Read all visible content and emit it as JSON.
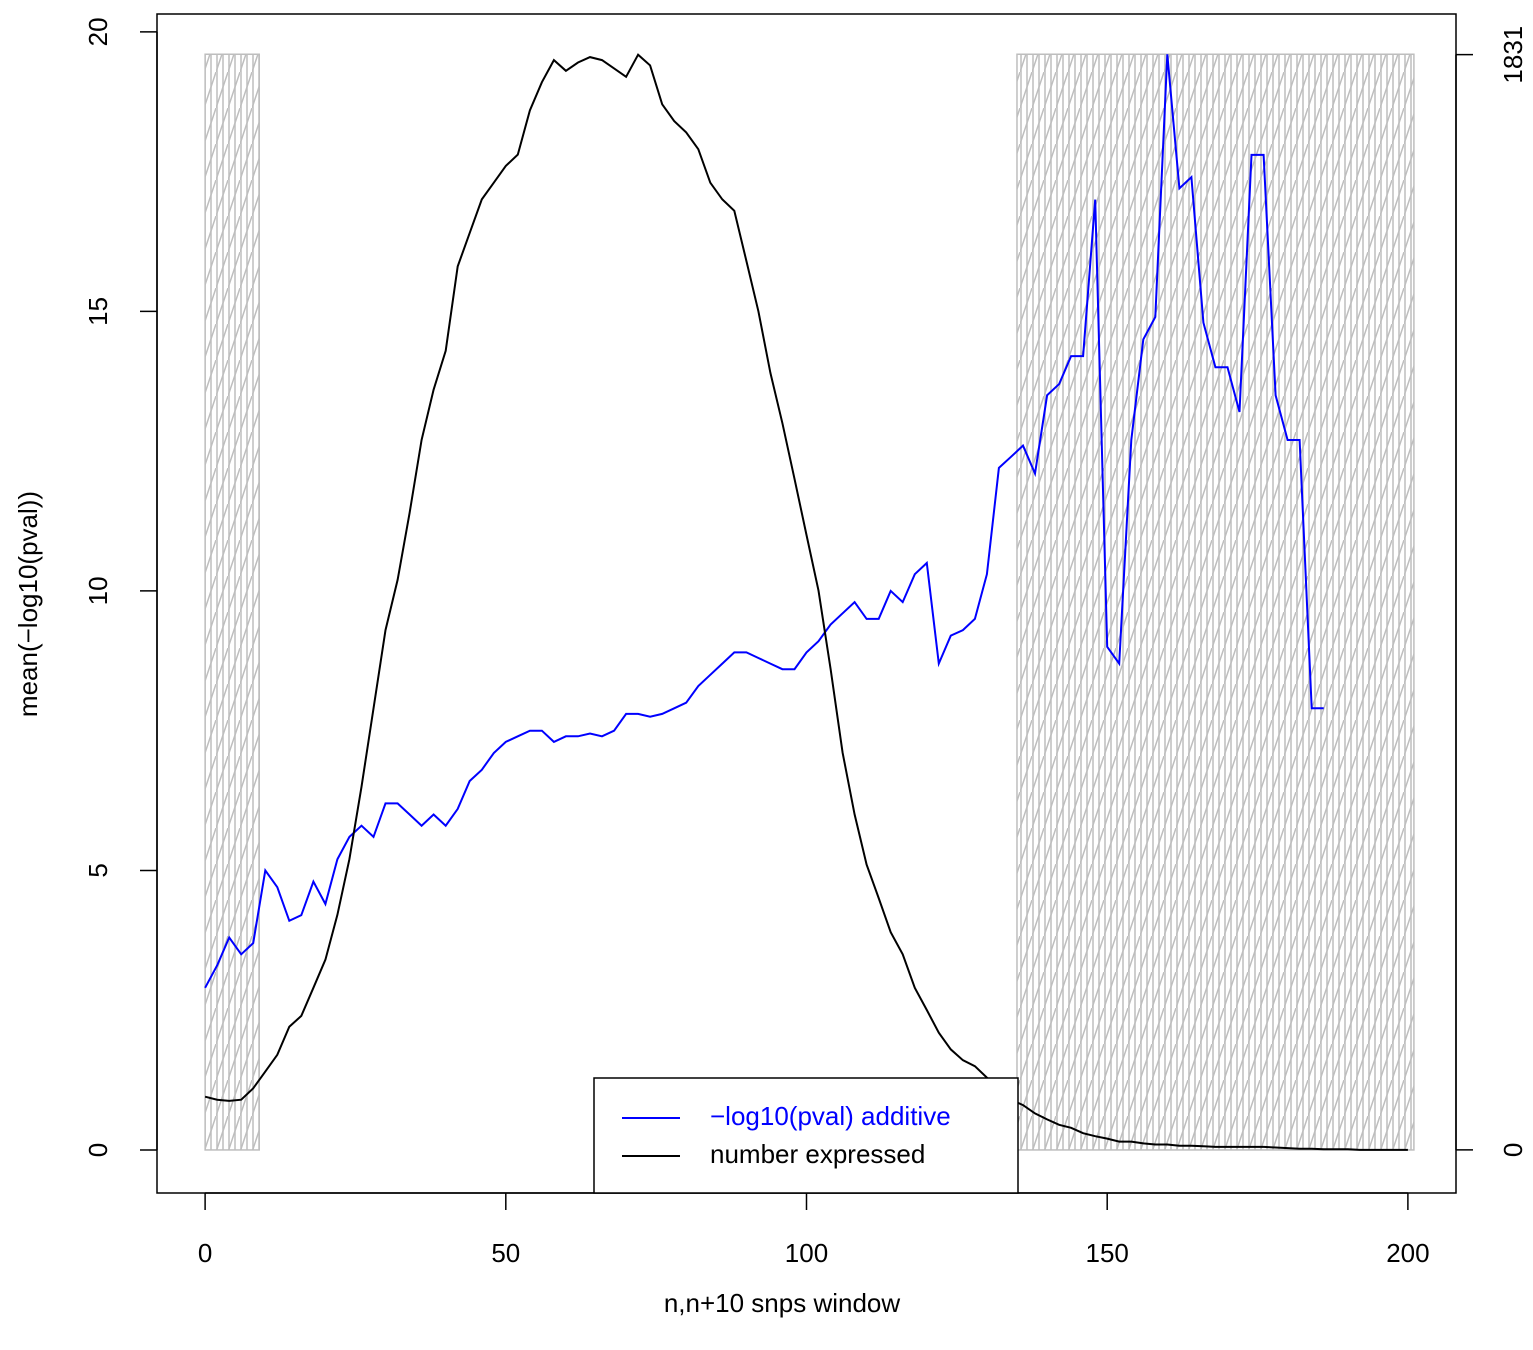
{
  "chart_data": {
    "type": "line",
    "x_label": "n,n+10 snps window",
    "y_label": "mean(−log10(pval))",
    "x": [
      0,
      2,
      4,
      6,
      8,
      10,
      12,
      14,
      16,
      18,
      20,
      22,
      24,
      26,
      28,
      30,
      32,
      34,
      36,
      38,
      40,
      42,
      44,
      46,
      48,
      50,
      52,
      54,
      56,
      58,
      60,
      62,
      64,
      66,
      68,
      70,
      72,
      74,
      76,
      78,
      80,
      82,
      84,
      86,
      88,
      90,
      92,
      94,
      96,
      98,
      100,
      102,
      104,
      106,
      108,
      110,
      112,
      114,
      116,
      118,
      120,
      122,
      124,
      126,
      128,
      130,
      132,
      134,
      136,
      138,
      140,
      142,
      144,
      146,
      148,
      150,
      152,
      154,
      156,
      158,
      160,
      162,
      164,
      166,
      168,
      170,
      172,
      174,
      176,
      178,
      180,
      182,
      184,
      186,
      188,
      190,
      192,
      194,
      196,
      198,
      200
    ],
    "series": [
      {
        "name": "−log10(pval) additive",
        "color": "#0000ff",
        "values": [
          2.9,
          3.3,
          3.8,
          3.5,
          3.7,
          5.0,
          4.7,
          4.1,
          4.2,
          4.8,
          4.4,
          5.2,
          5.6,
          5.8,
          5.6,
          6.2,
          6.2,
          6.0,
          5.8,
          6.0,
          5.8,
          6.1,
          6.6,
          6.8,
          7.1,
          7.3,
          7.4,
          7.5,
          7.5,
          7.3,
          7.4,
          7.4,
          7.45,
          7.4,
          7.5,
          7.8,
          7.8,
          7.75,
          7.8,
          7.9,
          8.0,
          8.3,
          8.5,
          8.7,
          8.9,
          8.9,
          8.8,
          8.7,
          8.6,
          8.6,
          8.9,
          9.1,
          9.4,
          9.6,
          9.8,
          9.5,
          9.5,
          10.0,
          9.8,
          10.3,
          10.5,
          8.7,
          9.2,
          9.3,
          9.5,
          10.3,
          12.2,
          12.4,
          12.6,
          12.1,
          13.5,
          13.7,
          14.2,
          14.2,
          17.0,
          9.0,
          8.7,
          12.7,
          14.5,
          14.9,
          19.6,
          17.2,
          17.4,
          14.8,
          14.0,
          14.0,
          13.2,
          17.8,
          17.8,
          13.5,
          12.7,
          12.7,
          7.9,
          7.9,
          null,
          null,
          null,
          null,
          null,
          null,
          null
        ]
      },
      {
        "name": "number expressed",
        "color": "#000000",
        "axis": "y2",
        "values": [
          89,
          84,
          82,
          84,
          103,
          131,
          159,
          206,
          224,
          271,
          318,
          393,
          486,
          607,
          738,
          869,
          953,
          1065,
          1187,
          1271,
          1336,
          1477,
          1533,
          1589,
          1617,
          1645,
          1664,
          1738,
          1785,
          1822,
          1804,
          1818,
          1827,
          1822,
          1808,
          1794,
          1831,
          1813,
          1748,
          1720,
          1701,
          1673,
          1617,
          1589,
          1570,
          1486,
          1402,
          1299,
          1215,
          1122,
          1028,
          935,
          804,
          664,
          561,
          477,
          421,
          364,
          327,
          271,
          234,
          196,
          168,
          150,
          140,
          121,
          103,
          84,
          75,
          61,
          51,
          42,
          37,
          28,
          23,
          19,
          14,
          14,
          11,
          9,
          9,
          7,
          7,
          6,
          5,
          5,
          5,
          5,
          5,
          4,
          3,
          2,
          2,
          1,
          1,
          1,
          0,
          0,
          0,
          0,
          0
        ]
      }
    ],
    "xlim": [
      -8,
      208
    ],
    "xticks": [
      0,
      50,
      100,
      150,
      200
    ],
    "ylim": [
      -0.77,
      20.32
    ],
    "yticks": [
      0,
      5,
      10,
      15,
      20
    ],
    "y2lim": [
      -72,
      1899
    ],
    "y2ticks": [
      0,
      1831
    ],
    "shaded_regions": [
      [
        0,
        9
      ],
      [
        135,
        201
      ]
    ],
    "shade_top": 19.6,
    "shade_color": "#bebebe",
    "legend": "bottom"
  }
}
